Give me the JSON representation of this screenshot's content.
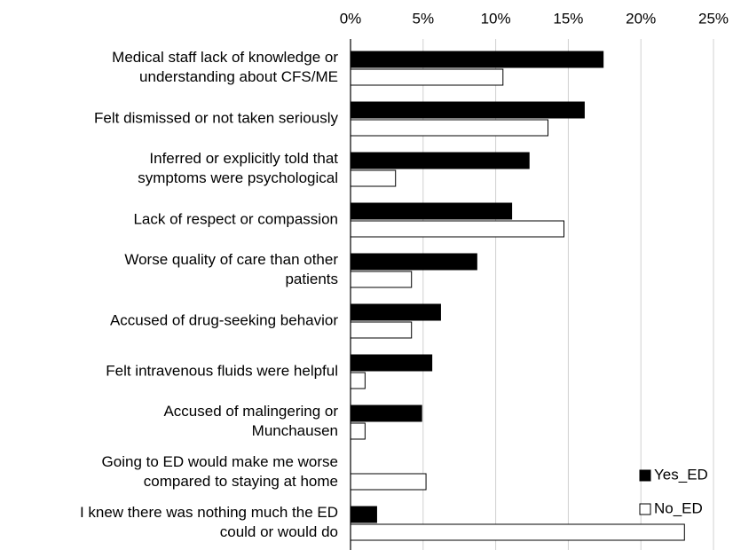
{
  "chart_data": {
    "type": "hbar",
    "categories": [
      "Medical staff lack of knowledge or\nunderstanding about CFS/ME",
      "Felt dismissed or not taken seriously",
      "Inferred or explicitly told that\nsymptoms were psychological",
      "Lack of respect or compassion",
      "Worse quality of care than other\npatients",
      "Accused of drug-seeking behavior",
      "Felt intravenous fluids were helpful",
      "Accused of malingering or\nMunchausen",
      "Going to ED would make me worse\ncompared to staying at home",
      "I knew there was nothing much the ED\ncould or would do"
    ],
    "series": [
      {
        "name": "Yes_ED",
        "color": "#000000",
        "values": [
          17.4,
          16.1,
          12.3,
          11.1,
          8.7,
          6.2,
          5.6,
          4.9,
          0,
          1.8
        ]
      },
      {
        "name": "No_ED",
        "color": "#ffffff",
        "values": [
          10.5,
          13.6,
          3.1,
          14.7,
          4.2,
          4.2,
          1.0,
          1.0,
          5.2,
          23.0
        ]
      }
    ],
    "xlim": [
      0,
      25
    ],
    "xticks": [
      {
        "value": 0,
        "label": "0%"
      },
      {
        "value": 5,
        "label": "5%"
      },
      {
        "value": 10,
        "label": "10%"
      },
      {
        "value": 15,
        "label": "15%"
      },
      {
        "value": 20,
        "label": "20%"
      },
      {
        "value": 25,
        "label": "25%"
      }
    ],
    "grid": true,
    "legend": "lower-right"
  }
}
